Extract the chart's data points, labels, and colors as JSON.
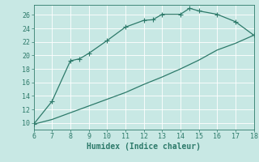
{
  "xlabel": "Humidex (Indice chaleur)",
  "ylabel": "",
  "bg_color": "#c8e8e4",
  "line_color": "#2d7a6a",
  "grid_color": "#ffffff",
  "xlim": [
    6,
    18
  ],
  "ylim": [
    9,
    27.5
  ],
  "xticks": [
    6,
    7,
    8,
    9,
    10,
    11,
    12,
    13,
    14,
    15,
    16,
    17,
    18
  ],
  "yticks": [
    10,
    12,
    14,
    16,
    18,
    20,
    22,
    24,
    26
  ],
  "upper_x": [
    6,
    7,
    8,
    8.5,
    9,
    10,
    11,
    12,
    12.5,
    13,
    14,
    14.5,
    15,
    16,
    17,
    18
  ],
  "upper_y": [
    9.8,
    13.2,
    19.2,
    19.5,
    20.3,
    22.2,
    24.2,
    25.2,
    25.3,
    26.1,
    26.1,
    27.0,
    26.6,
    26.1,
    25.0,
    23.0
  ],
  "lower_x": [
    6,
    7,
    8,
    9,
    10,
    11,
    12,
    13,
    14,
    15,
    16,
    17,
    18
  ],
  "lower_y": [
    9.8,
    10.5,
    11.5,
    12.5,
    13.5,
    14.5,
    15.7,
    16.8,
    18.0,
    19.3,
    20.8,
    21.8,
    23.0
  ],
  "marker": "+",
  "marker_size": 4,
  "linewidth": 0.9,
  "tick_fontsize": 6,
  "xlabel_fontsize": 7,
  "font_color": "#2d7a6a"
}
